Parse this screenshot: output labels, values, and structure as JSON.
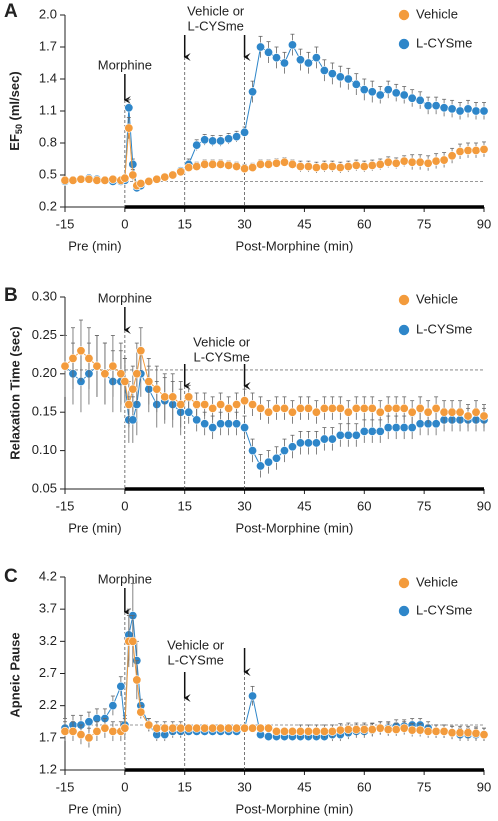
{
  "chart_data": [
    {
      "type": "line",
      "panel_label": "A",
      "y_label": {
        "text": "EF",
        "sub": "50",
        "unit": " (ml/sec)"
      },
      "x_labels": {
        "pre": "Pre (min)",
        "post": "Post-Morphine (min)"
      },
      "annotations": {
        "morphine": "Morphine",
        "vehicle": [
          "Vehicle or",
          "L-CYSme"
        ]
      },
      "events": [
        0,
        15,
        30
      ],
      "baseline": 0.44,
      "xlim": [
        -15,
        90
      ],
      "xticks": [
        -15,
        0,
        15,
        30,
        45,
        60,
        75,
        90
      ],
      "ylim": [
        0.2,
        2.0
      ],
      "yticks": [
        0.2,
        0.5,
        0.8,
        1.1,
        1.4,
        1.7,
        {
          "value": 2.0,
          "label": "2.0"
        }
      ],
      "x": [
        -15,
        -13,
        -11,
        -9,
        -7,
        -5,
        -3,
        -1,
        0,
        1,
        2,
        3,
        4,
        6,
        8,
        10,
        12,
        14,
        16,
        18,
        20,
        22,
        24,
        26,
        28,
        30,
        32,
        34,
        36,
        38,
        40,
        42,
        44,
        46,
        48,
        50,
        52,
        54,
        56,
        58,
        60,
        62,
        64,
        66,
        68,
        70,
        72,
        74,
        76,
        78,
        80,
        82,
        84,
        86,
        88,
        90
      ],
      "series": [
        {
          "name": "Vehicle",
          "color": "#f39b3c",
          "values": [
            0.45,
            0.45,
            0.46,
            0.46,
            0.45,
            0.45,
            0.46,
            0.45,
            0.47,
            0.94,
            0.5,
            0.4,
            0.42,
            0.44,
            0.46,
            0.48,
            0.5,
            0.53,
            0.57,
            0.58,
            0.6,
            0.6,
            0.6,
            0.59,
            0.58,
            0.56,
            0.57,
            0.6,
            0.6,
            0.61,
            0.62,
            0.6,
            0.58,
            0.58,
            0.57,
            0.58,
            0.58,
            0.57,
            0.58,
            0.59,
            0.58,
            0.59,
            0.6,
            0.62,
            0.61,
            0.63,
            0.62,
            0.62,
            0.61,
            0.63,
            0.64,
            0.68,
            0.72,
            0.73,
            0.73,
            0.74
          ],
          "errors": [
            0.03,
            0.03,
            0.03,
            0.03,
            0.03,
            0.03,
            0.03,
            0.03,
            0.03,
            0.1,
            0.05,
            0.03,
            0.03,
            0.03,
            0.03,
            0.03,
            0.03,
            0.03,
            0.04,
            0.04,
            0.04,
            0.04,
            0.04,
            0.04,
            0.04,
            0.04,
            0.04,
            0.04,
            0.04,
            0.04,
            0.04,
            0.04,
            0.05,
            0.05,
            0.05,
            0.05,
            0.05,
            0.05,
            0.05,
            0.05,
            0.05,
            0.05,
            0.05,
            0.05,
            0.05,
            0.05,
            0.07,
            0.07,
            0.07,
            0.07,
            0.07,
            0.07,
            0.07,
            0.07,
            0.07,
            0.07
          ]
        },
        {
          "name": "L-CYSme",
          "color": "#2e86c9",
          "values": [
            0.44,
            0.45,
            0.46,
            0.47,
            0.46,
            0.45,
            0.44,
            0.44,
            0.45,
            1.13,
            0.6,
            0.38,
            0.4,
            0.44,
            0.46,
            0.48,
            0.5,
            0.54,
            0.6,
            0.78,
            0.83,
            0.82,
            0.82,
            0.84,
            0.86,
            0.9,
            1.28,
            1.7,
            1.65,
            1.6,
            1.55,
            1.72,
            1.58,
            1.55,
            1.6,
            1.48,
            1.45,
            1.42,
            1.4,
            1.35,
            1.3,
            1.28,
            1.25,
            1.3,
            1.27,
            1.25,
            1.22,
            1.2,
            1.15,
            1.15,
            1.13,
            1.12,
            1.1,
            1.12,
            1.1,
            1.1
          ],
          "errors": [
            0.03,
            0.03,
            0.03,
            0.03,
            0.03,
            0.03,
            0.03,
            0.03,
            0.03,
            0.08,
            0.05,
            0.03,
            0.03,
            0.03,
            0.03,
            0.03,
            0.03,
            0.03,
            0.05,
            0.05,
            0.05,
            0.05,
            0.05,
            0.05,
            0.05,
            0.05,
            0.1,
            0.1,
            0.1,
            0.1,
            0.1,
            0.1,
            0.1,
            0.1,
            0.1,
            0.1,
            0.1,
            0.1,
            0.1,
            0.1,
            0.1,
            0.1,
            0.08,
            0.08,
            0.08,
            0.08,
            0.08,
            0.08,
            0.08,
            0.08,
            0.08,
            0.08,
            0.08,
            0.08,
            0.08,
            0.08
          ]
        }
      ]
    },
    {
      "type": "line",
      "panel_label": "B",
      "y_label": "Relaxation Time (sec)",
      "x_labels": {
        "pre": "Pre (min)",
        "post": "Post-Morphine (min)"
      },
      "annotations": {
        "morphine": "Morphine",
        "vehicle": [
          "Vehicle or",
          "L-CYSme"
        ]
      },
      "events": [
        0,
        15,
        30
      ],
      "baseline": 0.205,
      "xlim": [
        -15,
        90
      ],
      "xticks": [
        -15,
        0,
        15,
        30,
        45,
        60,
        75,
        90
      ],
      "ylim": [
        0.05,
        0.3
      ],
      "yticks": [
        0.05,
        {
          "value": 0.1,
          "label": "0.10"
        },
        0.15,
        {
          "value": 0.2,
          "label": "0.20"
        },
        0.25,
        {
          "value": 0.3,
          "label": "0.30"
        }
      ],
      "x": [
        -15,
        -13,
        -11,
        -9,
        -7,
        -5,
        -3,
        -1,
        0,
        1,
        2,
        3,
        4,
        6,
        8,
        10,
        12,
        14,
        16,
        18,
        20,
        22,
        24,
        26,
        28,
        30,
        32,
        34,
        36,
        38,
        40,
        42,
        44,
        46,
        48,
        50,
        52,
        54,
        56,
        58,
        60,
        62,
        64,
        66,
        68,
        70,
        72,
        74,
        76,
        78,
        80,
        82,
        84,
        86,
        88,
        90
      ],
      "series": [
        {
          "name": "Vehicle",
          "color": "#f39b3c",
          "values": [
            0.21,
            0.22,
            0.23,
            0.22,
            0.21,
            0.2,
            0.21,
            0.2,
            0.19,
            0.16,
            0.18,
            0.2,
            0.23,
            0.19,
            0.18,
            0.17,
            0.17,
            0.16,
            0.17,
            0.16,
            0.16,
            0.155,
            0.16,
            0.155,
            0.16,
            0.165,
            0.16,
            0.155,
            0.15,
            0.155,
            0.155,
            0.15,
            0.155,
            0.155,
            0.15,
            0.155,
            0.155,
            0.155,
            0.15,
            0.155,
            0.155,
            0.155,
            0.15,
            0.155,
            0.155,
            0.155,
            0.15,
            0.155,
            0.15,
            0.155,
            0.15,
            0.15,
            0.15,
            0.145,
            0.15,
            0.145
          ],
          "errors": [
            0.04,
            0.04,
            0.04,
            0.04,
            0.04,
            0.04,
            0.04,
            0.04,
            0.03,
            0.03,
            0.03,
            0.04,
            0.03,
            0.03,
            0.03,
            0.03,
            0.03,
            0.03,
            0.015,
            0.015,
            0.015,
            0.015,
            0.015,
            0.015,
            0.015,
            0.015,
            0.015,
            0.015,
            0.015,
            0.015,
            0.015,
            0.015,
            0.015,
            0.015,
            0.015,
            0.015,
            0.015,
            0.015,
            0.015,
            0.015,
            0.015,
            0.015,
            0.015,
            0.015,
            0.015,
            0.015,
            0.015,
            0.015,
            0.015,
            0.015,
            0.015,
            0.015,
            0.015,
            0.015,
            0.015,
            0.015
          ]
        },
        {
          "name": "L-CYSme",
          "color": "#2e86c9",
          "values": [
            0.21,
            0.2,
            0.19,
            0.2,
            0.21,
            0.2,
            0.19,
            0.19,
            0.19,
            0.14,
            0.14,
            0.16,
            0.2,
            0.18,
            0.16,
            0.165,
            0.16,
            0.15,
            0.15,
            0.14,
            0.135,
            0.13,
            0.135,
            0.135,
            0.135,
            0.13,
            0.1,
            0.08,
            0.085,
            0.09,
            0.1,
            0.105,
            0.11,
            0.11,
            0.11,
            0.115,
            0.115,
            0.12,
            0.12,
            0.12,
            0.125,
            0.125,
            0.125,
            0.13,
            0.13,
            0.13,
            0.13,
            0.135,
            0.135,
            0.135,
            0.14,
            0.14,
            0.14,
            0.14,
            0.14,
            0.14
          ],
          "errors": [
            0.04,
            0.04,
            0.04,
            0.04,
            0.04,
            0.04,
            0.04,
            0.04,
            0.03,
            0.03,
            0.03,
            0.04,
            0.03,
            0.03,
            0.03,
            0.03,
            0.03,
            0.03,
            0.015,
            0.015,
            0.015,
            0.015,
            0.015,
            0.015,
            0.015,
            0.015,
            0.015,
            0.015,
            0.015,
            0.015,
            0.015,
            0.015,
            0.015,
            0.015,
            0.015,
            0.015,
            0.015,
            0.015,
            0.015,
            0.015,
            0.015,
            0.015,
            0.015,
            0.015,
            0.015,
            0.015,
            0.015,
            0.015,
            0.015,
            0.015,
            0.015,
            0.015,
            0.015,
            0.015,
            0.015,
            0.015
          ]
        }
      ]
    },
    {
      "type": "line",
      "panel_label": "C",
      "y_label": "Apneic Pause",
      "x_labels": {
        "pre": "Pre (min)",
        "post": "Post-Morphine (min)"
      },
      "annotations": {
        "morphine": "Morphine",
        "vehicle": [
          "Vehicle or",
          "L-CYSme"
        ]
      },
      "events": [
        0,
        15,
        30
      ],
      "baseline": 1.9,
      "xlim": [
        -15,
        90
      ],
      "xticks": [
        -15,
        0,
        15,
        30,
        45,
        60,
        75,
        90
      ],
      "ylim": [
        1.2,
        4.2
      ],
      "yticks": [
        1.2,
        1.7,
        2.2,
        2.7,
        3.2,
        3.7,
        4.2
      ],
      "x": [
        -15,
        -13,
        -11,
        -9,
        -7,
        -5,
        -3,
        -1,
        0,
        1,
        2,
        3,
        4,
        6,
        8,
        10,
        12,
        14,
        16,
        18,
        20,
        22,
        24,
        26,
        28,
        30,
        32,
        34,
        36,
        38,
        40,
        42,
        44,
        46,
        48,
        50,
        52,
        54,
        56,
        58,
        60,
        62,
        64,
        66,
        68,
        70,
        72,
        74,
        76,
        78,
        80,
        82,
        84,
        86,
        88,
        90
      ],
      "series": [
        {
          "name": "Vehicle",
          "color": "#f39b3c",
          "values": [
            1.8,
            1.8,
            1.75,
            1.7,
            1.8,
            1.85,
            1.8,
            1.8,
            1.85,
            3.2,
            3.2,
            2.6,
            2.1,
            1.9,
            1.85,
            1.85,
            1.85,
            1.85,
            1.85,
            1.85,
            1.85,
            1.85,
            1.85,
            1.85,
            1.85,
            1.85,
            1.85,
            1.85,
            1.85,
            1.8,
            1.8,
            1.8,
            1.8,
            1.8,
            1.8,
            1.8,
            1.8,
            1.82,
            1.83,
            1.83,
            1.83,
            1.83,
            1.85,
            1.83,
            1.83,
            1.85,
            1.82,
            1.82,
            1.8,
            1.8,
            1.8,
            1.78,
            1.78,
            1.78,
            1.77,
            1.75
          ],
          "errors": [
            0.15,
            0.15,
            0.15,
            0.15,
            0.15,
            0.15,
            0.15,
            0.15,
            0.15,
            0.4,
            0.4,
            0.3,
            0.1,
            0.1,
            0.1,
            0.1,
            0.1,
            0.1,
            0.05,
            0.05,
            0.05,
            0.05,
            0.05,
            0.05,
            0.05,
            0.05,
            0.05,
            0.05,
            0.05,
            0.05,
            0.05,
            0.05,
            0.1,
            0.1,
            0.1,
            0.1,
            0.1,
            0.1,
            0.1,
            0.1,
            0.1,
            0.1,
            0.1,
            0.1,
            0.1,
            0.1,
            0.1,
            0.1,
            0.1,
            0.1,
            0.1,
            0.1,
            0.1,
            0.1,
            0.1,
            0.1
          ]
        },
        {
          "name": "L-CYSme",
          "color": "#2e86c9",
          "values": [
            1.85,
            1.9,
            1.9,
            1.95,
            2.0,
            2.0,
            2.2,
            2.5,
            1.9,
            3.3,
            3.6,
            2.9,
            2.2,
            1.9,
            1.75,
            1.75,
            1.8,
            1.8,
            1.8,
            1.8,
            1.8,
            1.8,
            1.8,
            1.8,
            1.8,
            1.85,
            2.35,
            1.75,
            1.72,
            1.72,
            1.72,
            1.72,
            1.72,
            1.72,
            1.72,
            1.72,
            1.75,
            1.75,
            1.78,
            1.8,
            1.8,
            1.82,
            1.85,
            1.85,
            1.88,
            1.88,
            1.9,
            1.9,
            1.85,
            1.8,
            1.8,
            1.78,
            1.75,
            1.75,
            1.75,
            1.75
          ],
          "errors": [
            0.15,
            0.15,
            0.15,
            0.15,
            0.15,
            0.15,
            0.15,
            0.15,
            0.15,
            0.4,
            0.5,
            0.3,
            0.1,
            0.1,
            0.1,
            0.1,
            0.1,
            0.1,
            0.05,
            0.05,
            0.05,
            0.05,
            0.05,
            0.05,
            0.05,
            0.05,
            0.15,
            0.05,
            0.05,
            0.05,
            0.05,
            0.05,
            0.05,
            0.05,
            0.05,
            0.05,
            0.1,
            0.1,
            0.1,
            0.1,
            0.1,
            0.1,
            0.1,
            0.1,
            0.1,
            0.1,
            0.1,
            0.1,
            0.1,
            0.1,
            0.1,
            0.1,
            0.1,
            0.1,
            0.1,
            0.1
          ]
        }
      ]
    }
  ]
}
